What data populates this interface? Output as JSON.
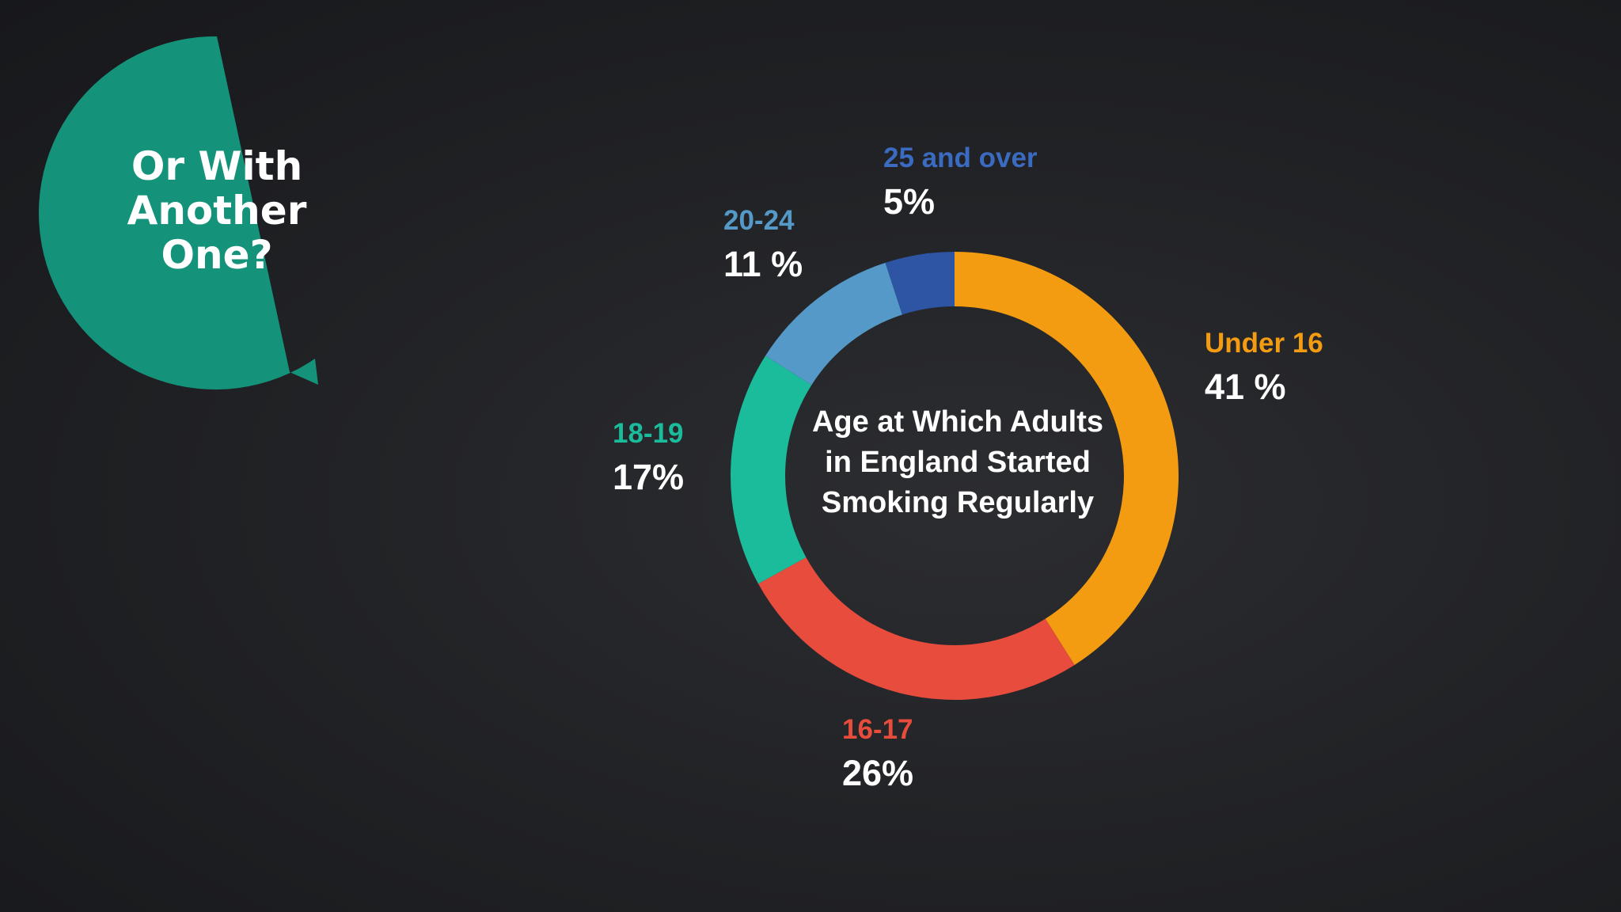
{
  "bubble": {
    "lines": [
      "Or With",
      "Another",
      "One?"
    ],
    "color": "#14927a"
  },
  "chart_data": {
    "type": "pie",
    "style": "donut",
    "title_lines": [
      "Age at Which Adults",
      "in England Started",
      "Smoking Regularly"
    ],
    "title": "Age at Which Adults in England Started Smoking Regularly",
    "slices": [
      {
        "label": "Under 16",
        "value": 41,
        "value_label": "41 %",
        "color": "#f39c12"
      },
      {
        "label": "16-17",
        "value": 26,
        "value_label": "26%",
        "color": "#e74c3c"
      },
      {
        "label": "18-19",
        "value": 17,
        "value_label": "17%",
        "color": "#1abc9c"
      },
      {
        "label": "20-24",
        "value": 11,
        "value_label": "11 %",
        "color": "#5499c7"
      },
      {
        "label": "25 and over",
        "value": 5,
        "value_label": "5%",
        "color": "#2e55a3"
      }
    ]
  }
}
